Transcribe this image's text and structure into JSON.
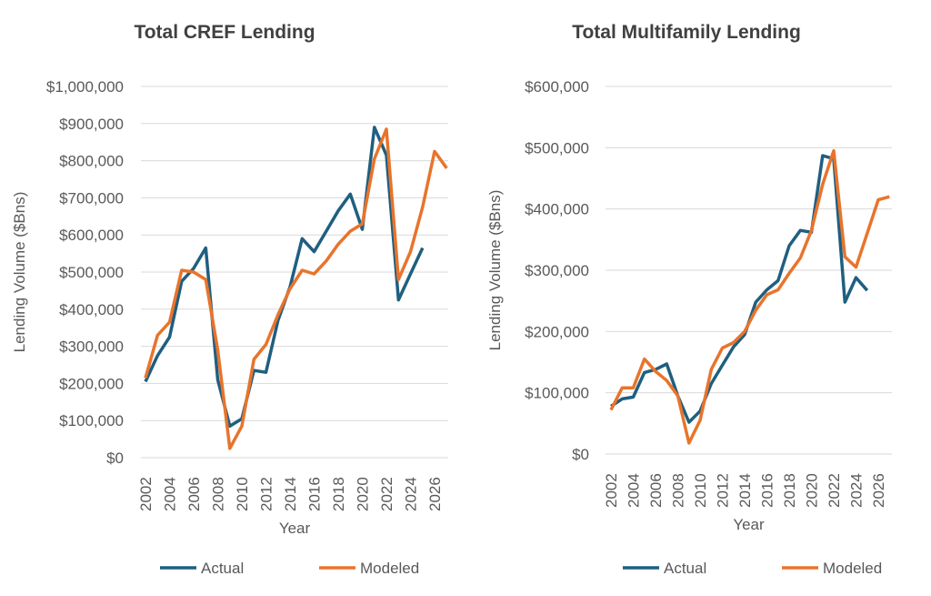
{
  "colors": {
    "actual": "#1f5f80",
    "modeled": "#e8742c",
    "grid": "#d9d9d9"
  },
  "chart_data": [
    {
      "type": "line",
      "title": "Total CREF Lending",
      "xlabel": "Year",
      "ylabel": "Lending Volume ($Bns)",
      "ylim": [
        0,
        1000000
      ],
      "yticks": [
        "$0",
        "$100,000",
        "$200,000",
        "$300,000",
        "$400,000",
        "$500,000",
        "$600,000",
        "$700,000",
        "$800,000",
        "$900,000",
        "$1,000,000"
      ],
      "xticks": [
        "2002",
        "2004",
        "2006",
        "2008",
        "2010",
        "2012",
        "2014",
        "2016",
        "2018",
        "2020",
        "2022",
        "2024",
        "2026"
      ],
      "grid": true,
      "legend": "bottom",
      "x": [
        2002,
        2003,
        2004,
        2005,
        2006,
        2007,
        2008,
        2009,
        2010,
        2011,
        2012,
        2013,
        2014,
        2015,
        2016,
        2017,
        2018,
        2019,
        2020,
        2021,
        2022,
        2023,
        2024,
        2025,
        2026,
        2027
      ],
      "series": [
        {
          "name": "Actual",
          "values": [
            205000,
            275000,
            325000,
            475000,
            510000,
            565000,
            210000,
            85000,
            105000,
            235000,
            230000,
            370000,
            460000,
            590000,
            555000,
            610000,
            665000,
            710000,
            615000,
            890000,
            815000,
            425000,
            495000,
            565000,
            null,
            null
          ]
        },
        {
          "name": "Modeled",
          "values": [
            215000,
            330000,
            365000,
            505000,
            500000,
            480000,
            290000,
            25000,
            85000,
            265000,
            305000,
            385000,
            455000,
            505000,
            495000,
            530000,
            575000,
            610000,
            630000,
            805000,
            885000,
            480000,
            555000,
            675000,
            825000,
            780000
          ]
        }
      ]
    },
    {
      "type": "line",
      "title": "Total Multifamily Lending",
      "xlabel": "Year",
      "ylabel": "Lending Volume ($Bns)",
      "ylim": [
        0,
        600000
      ],
      "yticks": [
        "$0",
        "$100,000",
        "$200,000",
        "$300,000",
        "$400,000",
        "$500,000",
        "$600,000"
      ],
      "xticks": [
        "2002",
        "2004",
        "2006",
        "2008",
        "2010",
        "2012",
        "2014",
        "2016",
        "2018",
        "2020",
        "2022",
        "2024",
        "2026"
      ],
      "grid": true,
      "legend": "bottom",
      "x": [
        2002,
        2003,
        2004,
        2005,
        2006,
        2007,
        2008,
        2009,
        2010,
        2011,
        2012,
        2013,
        2014,
        2015,
        2016,
        2017,
        2018,
        2019,
        2020,
        2021,
        2022,
        2023,
        2024,
        2025,
        2026,
        2027
      ],
      "series": [
        {
          "name": "Actual",
          "values": [
            78000,
            90000,
            93000,
            133000,
            138000,
            147000,
            95000,
            52000,
            70000,
            115000,
            145000,
            175000,
            195000,
            248000,
            268000,
            283000,
            340000,
            365000,
            362000,
            487000,
            482000,
            248000,
            288000,
            267000,
            null,
            null
          ]
        },
        {
          "name": "Modeled",
          "values": [
            72000,
            108000,
            108000,
            155000,
            135000,
            120000,
            95000,
            18000,
            55000,
            138000,
            173000,
            182000,
            200000,
            235000,
            260000,
            268000,
            295000,
            320000,
            365000,
            440000,
            495000,
            322000,
            305000,
            360000,
            415000,
            420000
          ]
        }
      ]
    }
  ]
}
